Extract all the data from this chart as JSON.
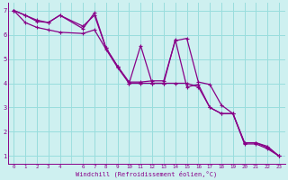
{
  "xlabel": "Windchill (Refroidissement éolien,°C)",
  "background_color": "#cef0f0",
  "line_color": "#880088",
  "grid_color": "#99dddd",
  "xlim": [
    -0.5,
    23.5
  ],
  "ylim": [
    0.7,
    7.3
  ],
  "xticks": [
    0,
    1,
    2,
    3,
    4,
    6,
    7,
    8,
    9,
    10,
    11,
    12,
    13,
    14,
    15,
    16,
    17,
    18,
    19,
    20,
    21,
    22,
    23
  ],
  "xtick_labels": [
    "0",
    "1",
    "2",
    "3",
    "4",
    "6",
    "7",
    "8",
    "9",
    "10",
    "11",
    "12",
    "13",
    "14",
    "15",
    "16",
    "17",
    "18",
    "19",
    "20",
    "21",
    "22",
    "23"
  ],
  "yticks": [
    1,
    2,
    3,
    4,
    5,
    6,
    7
  ],
  "series": [
    {
      "x": [
        0,
        1,
        2,
        3,
        4,
        6,
        7,
        8,
        9,
        10,
        11,
        12,
        13,
        14,
        15,
        16,
        17,
        18,
        19,
        20,
        21,
        22,
        23
      ],
      "y": [
        7.0,
        6.8,
        6.6,
        6.5,
        6.8,
        6.35,
        6.8,
        5.45,
        4.7,
        4.05,
        4.05,
        4.1,
        4.1,
        5.75,
        5.85,
        4.05,
        3.95,
        3.1,
        2.75,
        1.55,
        1.55,
        1.4,
        1.0
      ]
    },
    {
      "x": [
        0,
        1,
        2,
        3,
        4,
        6,
        7,
        8,
        9,
        10,
        11,
        12,
        13,
        14,
        15,
        16,
        17,
        18,
        19,
        20,
        21,
        22,
        23
      ],
      "y": [
        7.0,
        6.8,
        6.55,
        6.5,
        6.8,
        6.25,
        6.9,
        5.45,
        4.7,
        4.0,
        5.55,
        4.0,
        4.0,
        5.8,
        3.85,
        3.95,
        3.0,
        2.75,
        2.75,
        1.55,
        1.55,
        1.35,
        1.0
      ]
    },
    {
      "x": [
        0,
        1,
        2,
        3,
        4,
        6,
        7,
        8,
        9,
        10,
        11,
        12,
        13,
        14,
        15,
        16,
        17,
        18,
        19,
        20,
        21,
        22,
        23
      ],
      "y": [
        7.0,
        6.5,
        6.3,
        6.2,
        6.1,
        6.05,
        6.2,
        5.4,
        4.65,
        4.0,
        4.0,
        4.0,
        4.0,
        4.0,
        4.0,
        3.85,
        3.0,
        2.75,
        2.75,
        1.5,
        1.5,
        1.3,
        1.0
      ]
    }
  ],
  "line_width": 0.9,
  "marker_size": 2.5
}
